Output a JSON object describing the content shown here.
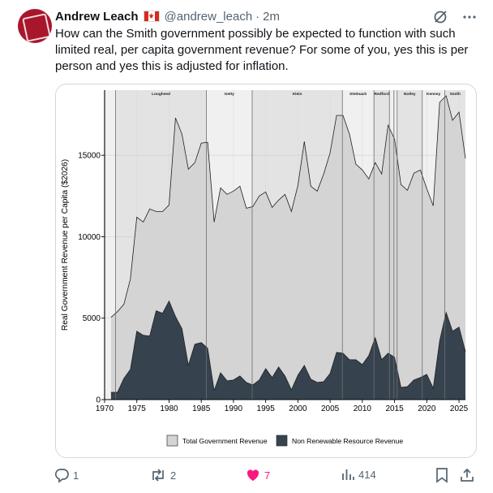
{
  "tweet": {
    "author_name": "Andrew Leach",
    "handle": "@andrew_leach",
    "separator": "·",
    "time": "2m",
    "text": "How can the Smith government possibly be expected to function with such limited real, per capita government revenue? For some of you, yes this is per person and yes this is adjusted for inflation."
  },
  "actions": {
    "replies": "1",
    "reposts": "2",
    "likes": "7",
    "views": "414"
  },
  "icons": [
    "avatar",
    "canada-flag-icon",
    "grok-icon",
    "more-icon",
    "reply-icon",
    "repost-icon",
    "like-icon",
    "views-icon",
    "bookmark-icon",
    "share-icon"
  ],
  "colors": {
    "like": "#f91880",
    "muted": "#536471",
    "total_fill": "#d4d4d4",
    "resource_fill": "#36434f"
  },
  "chart_data": {
    "type": "area",
    "ylabel": "Real Government Revenue per Capita ($2026)",
    "xlabel": "",
    "xlim": [
      1970,
      2026
    ],
    "ylim": [
      0,
      19000
    ],
    "x_ticks": [
      1970,
      1975,
      1980,
      1985,
      1990,
      1995,
      2000,
      2005,
      2010,
      2015,
      2020,
      2025
    ],
    "y_ticks": [
      0,
      5000,
      10000,
      15000
    ],
    "grid": true,
    "legend_position": "bottom",
    "premier_bands": [
      {
        "name": "Lougheed",
        "start": 1971.7,
        "end": 1985.8,
        "shade": "dark"
      },
      {
        "name": "Getty",
        "start": 1985.8,
        "end": 1992.9,
        "shade": "light"
      },
      {
        "name": "Klein",
        "start": 1992.9,
        "end": 2006.9,
        "shade": "dark"
      },
      {
        "name": "Stelmach",
        "start": 2006.9,
        "end": 2011.8,
        "shade": "light"
      },
      {
        "name": "Redford",
        "start": 2011.8,
        "end": 2014.2,
        "shade": "dark"
      },
      {
        "name": "Notley",
        "start": 2015.4,
        "end": 2019.3,
        "shade": "dark"
      },
      {
        "name": "Kenney",
        "start": 2019.3,
        "end": 2022.8,
        "shade": "light"
      },
      {
        "name": "Smith",
        "start": 2022.8,
        "end": 2026,
        "shade": "dark"
      }
    ],
    "premier_lines": [
      1971.7,
      1985.8,
      1992.9,
      2006.9,
      2011.8,
      2014.2,
      2014.9,
      2015.4,
      2019.3,
      2022.8
    ],
    "series": [
      {
        "name": "Total Government Revenue",
        "color": "#d4d4d4",
        "points": [
          [
            1971,
            5050
          ],
          [
            1972,
            5400
          ],
          [
            1973,
            5850
          ],
          [
            1974,
            7400
          ],
          [
            1975,
            11200
          ],
          [
            1976,
            10900
          ],
          [
            1977,
            11700
          ],
          [
            1978,
            11550
          ],
          [
            1979,
            11550
          ],
          [
            1980,
            11950
          ],
          [
            1981,
            17300
          ],
          [
            1982,
            16300
          ],
          [
            1983,
            14150
          ],
          [
            1984,
            14550
          ],
          [
            1985,
            15750
          ],
          [
            1986,
            15800
          ],
          [
            1987,
            10900
          ],
          [
            1988,
            13000
          ],
          [
            1989,
            12600
          ],
          [
            1990,
            12800
          ],
          [
            1991,
            13100
          ],
          [
            1992,
            11750
          ],
          [
            1993,
            11850
          ],
          [
            1994,
            12500
          ],
          [
            1995,
            12750
          ],
          [
            1996,
            11800
          ],
          [
            1997,
            12250
          ],
          [
            1998,
            12600
          ],
          [
            1999,
            11550
          ],
          [
            2000,
            13150
          ],
          [
            2001,
            15850
          ],
          [
            2002,
            13100
          ],
          [
            2003,
            12800
          ],
          [
            2004,
            13850
          ],
          [
            2005,
            15150
          ],
          [
            2006,
            17450
          ],
          [
            2007,
            17450
          ],
          [
            2008,
            16300
          ],
          [
            2009,
            14450
          ],
          [
            2010,
            14100
          ],
          [
            2011,
            13550
          ],
          [
            2012,
            14550
          ],
          [
            2013,
            13850
          ],
          [
            2014,
            16850
          ],
          [
            2015,
            16000
          ],
          [
            2016,
            13200
          ],
          [
            2017,
            12850
          ],
          [
            2018,
            13900
          ],
          [
            2019,
            14100
          ],
          [
            2020,
            12950
          ],
          [
            2021,
            11900
          ],
          [
            2022,
            18250
          ],
          [
            2023,
            18650
          ],
          [
            2024,
            17150
          ],
          [
            2025,
            17650
          ],
          [
            2026,
            14800
          ]
        ]
      },
      {
        "name": "Non Renewable Resource Revenue",
        "color": "#36434f",
        "points": [
          [
            1971,
            450
          ],
          [
            1972,
            450
          ],
          [
            1973,
            1300
          ],
          [
            1974,
            1850
          ],
          [
            1975,
            4200
          ],
          [
            1976,
            3950
          ],
          [
            1977,
            3900
          ],
          [
            1978,
            5450
          ],
          [
            1979,
            5300
          ],
          [
            1980,
            6050
          ],
          [
            1981,
            5100
          ],
          [
            1982,
            4350
          ],
          [
            1983,
            2100
          ],
          [
            1984,
            3400
          ],
          [
            1985,
            3500
          ],
          [
            1986,
            3150
          ],
          [
            1987,
            550
          ],
          [
            1988,
            1650
          ],
          [
            1989,
            1150
          ],
          [
            1990,
            1200
          ],
          [
            1991,
            1450
          ],
          [
            1992,
            1050
          ],
          [
            1993,
            900
          ],
          [
            1994,
            1200
          ],
          [
            1995,
            1900
          ],
          [
            1996,
            1350
          ],
          [
            1997,
            2000
          ],
          [
            1998,
            1450
          ],
          [
            1999,
            600
          ],
          [
            2000,
            1500
          ],
          [
            2001,
            2100
          ],
          [
            2002,
            1250
          ],
          [
            2003,
            1050
          ],
          [
            2004,
            1100
          ],
          [
            2005,
            1600
          ],
          [
            2006,
            2900
          ],
          [
            2007,
            2850
          ],
          [
            2008,
            2450
          ],
          [
            2009,
            2450
          ],
          [
            2010,
            2150
          ],
          [
            2011,
            2700
          ],
          [
            2012,
            3800
          ],
          [
            2013,
            2450
          ],
          [
            2014,
            2850
          ],
          [
            2015,
            2600
          ],
          [
            2016,
            750
          ],
          [
            2017,
            800
          ],
          [
            2018,
            1200
          ],
          [
            2019,
            1350
          ],
          [
            2020,
            1550
          ],
          [
            2021,
            700
          ],
          [
            2022,
            3600
          ],
          [
            2023,
            5350
          ],
          [
            2024,
            4200
          ],
          [
            2025,
            4450
          ],
          [
            2026,
            2950
          ]
        ]
      }
    ]
  }
}
